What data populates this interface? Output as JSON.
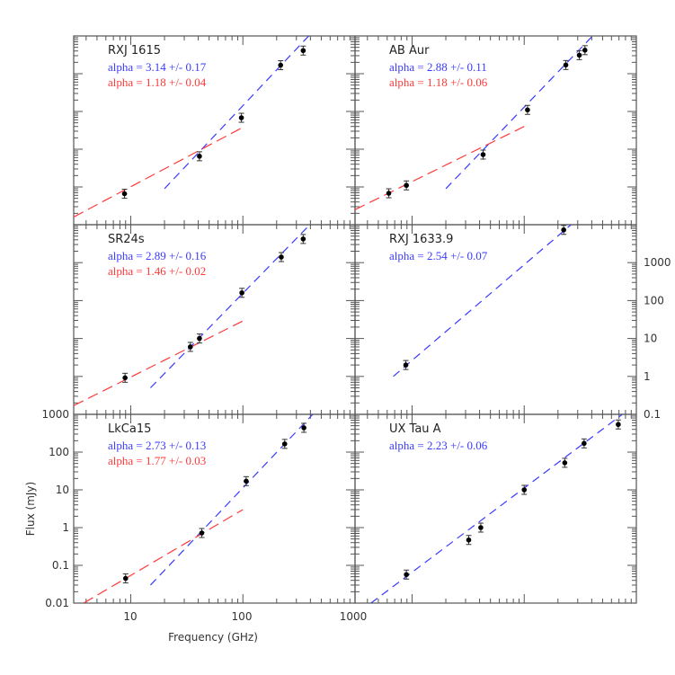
{
  "chart_data": {
    "type": "scatter",
    "layout": "3x2 grid of log-log panels, shared axes",
    "xlabel": "Frequency (GHz)",
    "ylabel": "Flux (mJy)",
    "xscale": "log",
    "yscale": "log",
    "xlim": [
      3.1,
      1000
    ],
    "ylim": [
      0.01,
      1000
    ],
    "x_ticks": [
      "10",
      "100",
      "1000"
    ],
    "y_ticks_left": [
      "0.01",
      "0.1",
      "1",
      "10",
      "100",
      "1000"
    ],
    "y_ticks_right": [
      "0.1",
      "1",
      "10",
      "100",
      "1000"
    ],
    "legend_position": "top-left annotation inside each panel",
    "colors": {
      "steep_fit": "#3a3aff",
      "shallow_fit": "#ff3a3a",
      "points": "#000000"
    },
    "panels": [
      {
        "name": "RXJ 1615",
        "row": 0,
        "col": 0,
        "annotations": [
          {
            "text": "alpha = 3.14 +/- 0.17",
            "color": "blue"
          },
          {
            "text": "alpha = 1.18 +/- 0.04",
            "color": "red"
          }
        ],
        "points": [
          {
            "x": 8.8,
            "y": 0.066
          },
          {
            "x": 41,
            "y": 0.65
          },
          {
            "x": 97,
            "y": 6.8
          },
          {
            "x": 217,
            "y": 168
          },
          {
            "x": 345,
            "y": 410
          }
        ],
        "fits": [
          {
            "color": "blue",
            "alpha": 3.14,
            "x_range": [
              20,
              420
            ],
            "y_at": [
              0.09,
              1300
            ]
          },
          {
            "color": "red",
            "alpha": 1.18,
            "x_range": [
              3.1,
              100
            ],
            "y_at": [
              0.016,
              3.8
            ]
          }
        ]
      },
      {
        "name": "AB Aur",
        "row": 0,
        "col": 1,
        "annotations": [
          {
            "text": "alpha = 2.88 +/- 0.11",
            "color": "blue"
          },
          {
            "text": "alpha = 1.18 +/- 0.06",
            "color": "red"
          }
        ],
        "points": [
          {
            "x": 6.2,
            "y": 0.068
          },
          {
            "x": 8.9,
            "y": 0.11
          },
          {
            "x": 43,
            "y": 0.72
          },
          {
            "x": 107,
            "y": 11
          },
          {
            "x": 235,
            "y": 170
          },
          {
            "x": 310,
            "y": 310
          },
          {
            "x": 348,
            "y": 420
          }
        ],
        "fits": [
          {
            "color": "blue",
            "alpha": 2.88,
            "x_range": [
              20,
              420
            ],
            "y_at": [
              0.09,
              1100
            ]
          },
          {
            "color": "red",
            "alpha": 1.18,
            "x_range": [
              3.1,
              100
            ],
            "y_at": [
              0.025,
              4.0
            ]
          }
        ]
      },
      {
        "name": "SR24s",
        "row": 1,
        "col": 0,
        "annotations": [
          {
            "text": "alpha = 2.89 +/- 0.16",
            "color": "blue"
          },
          {
            "text": "alpha = 1.46 +/- 0.02",
            "color": "red"
          }
        ],
        "points": [
          {
            "x": 8.9,
            "y": 0.092
          },
          {
            "x": 34,
            "y": 0.6
          },
          {
            "x": 41,
            "y": 1.0
          },
          {
            "x": 98,
            "y": 16
          },
          {
            "x": 220,
            "y": 140
          },
          {
            "x": 345,
            "y": 420
          }
        ],
        "fits": [
          {
            "color": "blue",
            "alpha": 2.89,
            "x_range": [
              15,
              420
            ],
            "y_at": [
              0.05,
              1200
            ]
          },
          {
            "color": "red",
            "alpha": 1.46,
            "x_range": [
              3.1,
              100
            ],
            "y_at": [
              0.017,
              2.9
            ]
          }
        ]
      },
      {
        "name": "RXJ 1633.9",
        "row": 1,
        "col": 1,
        "annotations": [
          {
            "text": "alpha = 2.54 +/- 0.07",
            "color": "blue"
          }
        ],
        "points": [
          {
            "x": 8.8,
            "y": 0.2
          },
          {
            "x": 225,
            "y": 730
          },
          {
            "x": 345,
            "y": 2050
          }
        ],
        "fits": [
          {
            "color": "blue",
            "alpha": 2.54,
            "x_range": [
              6.8,
              420
            ],
            "y_at": [
              0.1,
              3300
            ]
          }
        ]
      },
      {
        "name": "LkCa15",
        "row": 2,
        "col": 0,
        "annotations": [
          {
            "text": "alpha = 2.73 +/- 0.13",
            "color": "blue"
          },
          {
            "text": "alpha = 1.77 +/- 0.03",
            "color": "red"
          }
        ],
        "points": [
          {
            "x": 9.0,
            "y": 0.045
          },
          {
            "x": 43,
            "y": 0.72
          },
          {
            "x": 107,
            "y": 17
          },
          {
            "x": 236,
            "y": 165
          },
          {
            "x": 350,
            "y": 440
          }
        ],
        "fits": [
          {
            "color": "blue",
            "alpha": 2.73,
            "x_range": [
              15,
              420
            ],
            "y_at": [
              0.03,
              1000
            ]
          },
          {
            "color": "red",
            "alpha": 1.77,
            "x_range": [
              3.8,
              100
            ],
            "y_at": [
              0.01,
              3.0
            ]
          }
        ]
      },
      {
        "name": "UX Tau A",
        "row": 2,
        "col": 1,
        "annotations": [
          {
            "text": "alpha = 2.23 +/- 0.06",
            "color": "blue"
          }
        ],
        "points": [
          {
            "x": 8.9,
            "y": 0.057
          },
          {
            "x": 32,
            "y": 0.47
          },
          {
            "x": 41,
            "y": 1.0
          },
          {
            "x": 100,
            "y": 10
          },
          {
            "x": 230,
            "y": 52
          },
          {
            "x": 342,
            "y": 170
          },
          {
            "x": 690,
            "y": 540
          }
        ],
        "fits": [
          {
            "color": "blue",
            "alpha": 2.23,
            "x_range": [
              4.3,
              750
            ],
            "y_at": [
              0.01,
              1000
            ]
          }
        ]
      }
    ]
  },
  "axes": {
    "xlabel": "Frequency (GHz)",
    "ylabel": "Flux (mJy)",
    "x_tick_labels": [
      "10",
      "100",
      "1000"
    ],
    "y_tick_labels_left": [
      "0.01",
      "0.1",
      "1",
      "10",
      "100",
      "1000"
    ],
    "y_tick_labels_right": [
      "0.1",
      "1",
      "10",
      "100",
      "1000"
    ]
  }
}
